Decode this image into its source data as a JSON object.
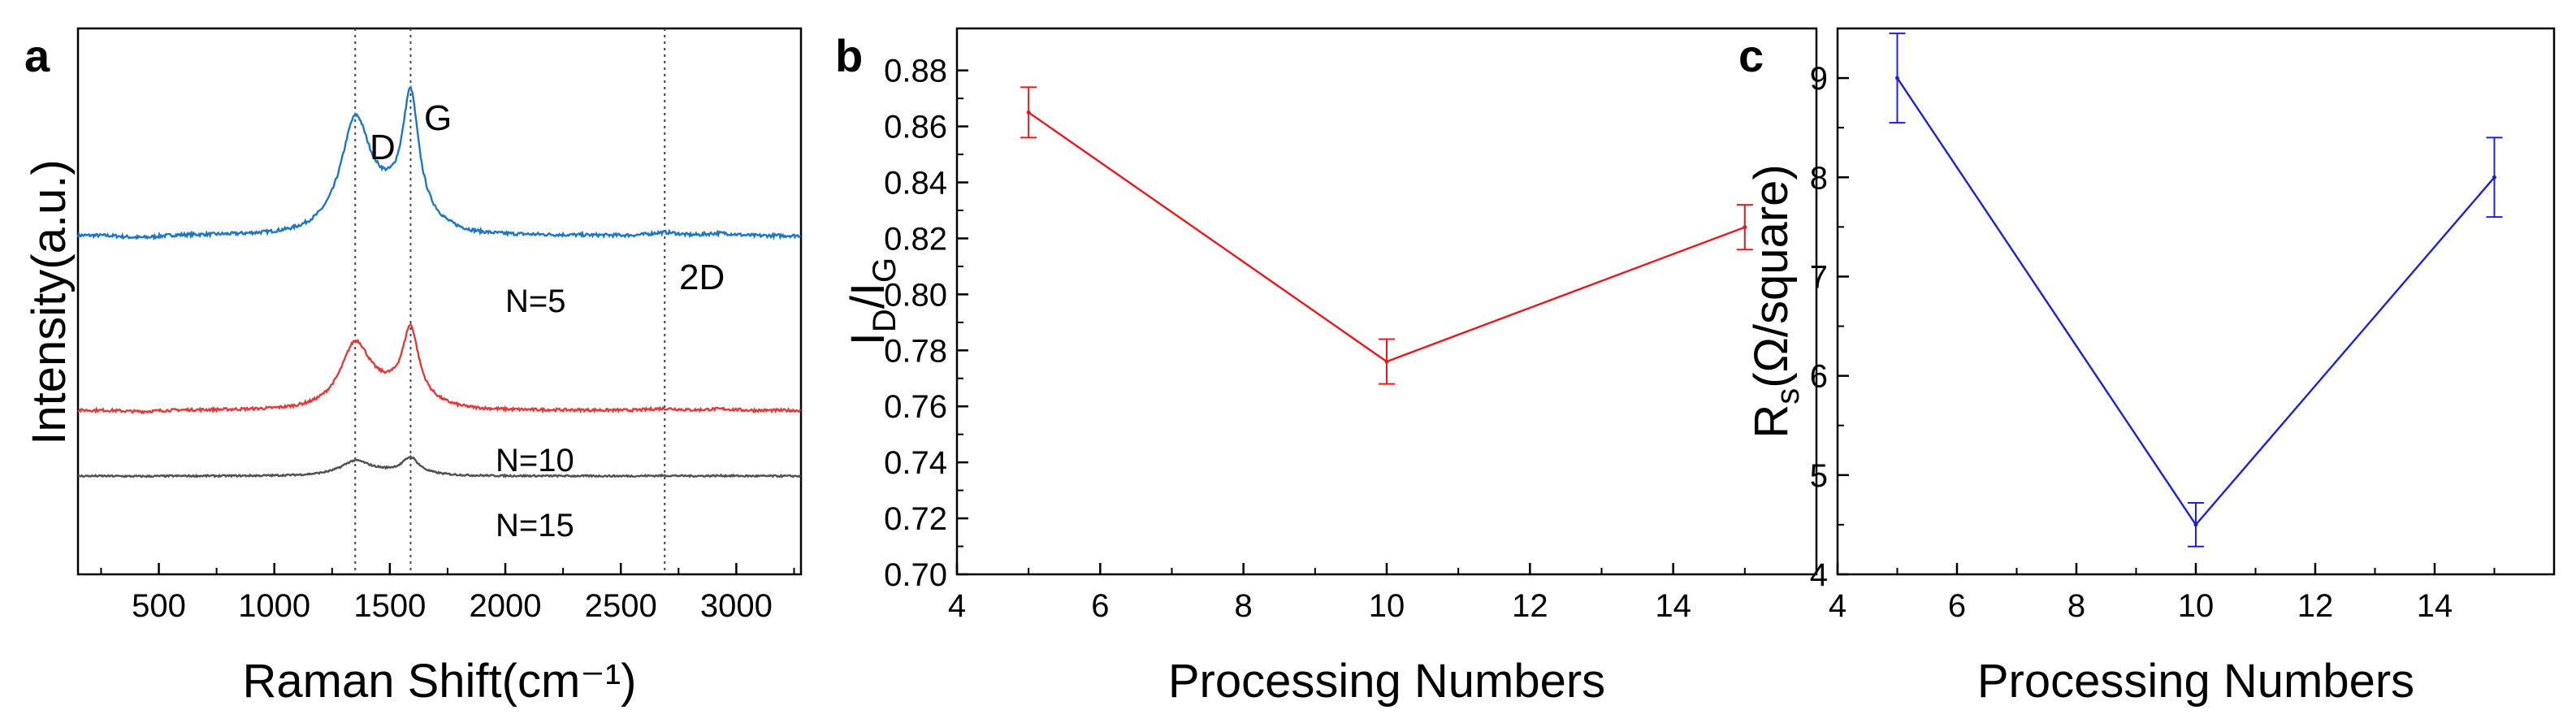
{
  "chart_data": [
    {
      "panel": "a",
      "type": "line",
      "xlabel": "Raman Shift(cm⁻¹)",
      "ylabel": "Intensity(a.u.)",
      "xlim": [
        150,
        3280
      ],
      "xticks": [
        500,
        1000,
        1500,
        2000,
        2500,
        3000
      ],
      "yticks": [],
      "peak_markers": [
        {
          "label": "D",
          "x": 1350
        },
        {
          "label": "G",
          "x": 1590
        },
        {
          "label": "2D",
          "x": 2690
        }
      ],
      "series": [
        {
          "name": "N=5",
          "color": "#1f77c4",
          "offset": 0.62,
          "scale": 1.0,
          "noise": 0.006
        },
        {
          "name": "N=10",
          "color": "#e03c3c",
          "offset": 0.3,
          "scale": 0.58,
          "noise": 0.005
        },
        {
          "name": "N=15",
          "color": "#505050",
          "offset": 0.18,
          "scale": 0.13,
          "noise": 0.003
        }
      ]
    },
    {
      "panel": "b",
      "type": "line",
      "xlabel": "Processing Numbers",
      "ylabel": "I_D/I_G",
      "ylabel_main": "I",
      "ylabel_sub1": "D",
      "ylabel_mid": "/I",
      "ylabel_sub2": "G",
      "xlim": [
        4,
        16
      ],
      "ylim": [
        0.7,
        0.895
      ],
      "xticks": [
        4,
        6,
        8,
        10,
        12,
        14
      ],
      "yticks": [
        0.7,
        0.72,
        0.74,
        0.76,
        0.78,
        0.8,
        0.82,
        0.84,
        0.86,
        0.88
      ],
      "ytick_labels": [
        "0.70",
        "0.72",
        "0.74",
        "0.76",
        "0.78",
        "0.80",
        "0.82",
        "0.84",
        "0.86",
        "0.88"
      ],
      "color": "#e8191c",
      "x": [
        5,
        10,
        15
      ],
      "y": [
        0.865,
        0.776,
        0.824
      ],
      "err": [
        0.009,
        0.008,
        0.008
      ]
    },
    {
      "panel": "c",
      "type": "line",
      "xlabel": "Processing Numbers",
      "ylabel": "R_s(Ω/square)",
      "ylabel_main": "R",
      "ylabel_sub": "s",
      "ylabel_rest": "(Ω/square)",
      "xlim": [
        4,
        16
      ],
      "ylim": [
        4,
        9.5
      ],
      "xticks": [
        4,
        6,
        8,
        10,
        12,
        14
      ],
      "yticks": [
        4,
        5,
        6,
        7,
        8,
        9
      ],
      "ytick_labels": [
        "4",
        "5",
        "6",
        "7",
        "8",
        "9"
      ],
      "color": "#2020d0",
      "x": [
        5,
        10,
        15
      ],
      "y": [
        9.0,
        4.5,
        8.0
      ],
      "err": [
        0.45,
        0.22,
        0.4
      ]
    }
  ]
}
